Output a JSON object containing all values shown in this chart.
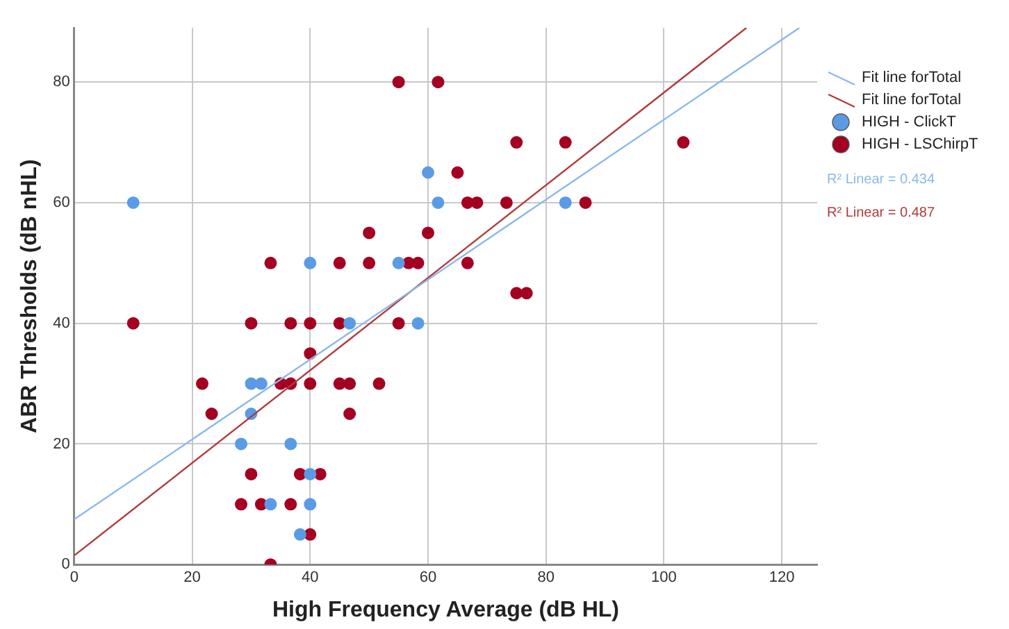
{
  "chart_data": {
    "type": "scatter",
    "xlabel": "High Frequency Average (dB HL)",
    "ylabel": "ABR Thresholds (dB nHL)",
    "xlim": [
      0,
      126
    ],
    "ylim": [
      0,
      89
    ],
    "xticks": [
      0,
      20,
      40,
      60,
      80,
      100,
      120
    ],
    "yticks": [
      0,
      20,
      40,
      60,
      80
    ],
    "grid": true,
    "legend": "right",
    "marker": "circle",
    "series": [
      {
        "name": "Fit line forTotal",
        "type": "line",
        "marker": "none",
        "color": "#8ab8ec",
        "x": [
          0,
          123
        ],
        "values": [
          7.5,
          89
        ]
      },
      {
        "name": "Fit line forTotal",
        "type": "line",
        "marker": "none",
        "color": "#b23a3a",
        "x": [
          0,
          114
        ],
        "values": [
          1.5,
          89
        ]
      },
      {
        "name": "HIGH - ClickT",
        "color": "#5b9be6",
        "x": [
          10,
          40,
          30,
          31.7,
          30,
          28.3,
          36.7,
          40,
          33.3,
          40,
          38.3,
          60,
          61.7,
          83.3,
          55,
          46.7,
          58.3
        ],
        "values": [
          60,
          50,
          30,
          30,
          25,
          20,
          20,
          15,
          10,
          10,
          5,
          65,
          60,
          60,
          50,
          40,
          40
        ]
      },
      {
        "name": "HIGH - LSChirpT",
        "color": "#a50021",
        "x": [
          10,
          33.3,
          45,
          30,
          36.7,
          40,
          45,
          40,
          21.7,
          35,
          36.7,
          40,
          45,
          46.7,
          51.7,
          23.3,
          46.7,
          30,
          38.3,
          41.7,
          28.3,
          31.7,
          36.7,
          40,
          33.3,
          55,
          61.7,
          75,
          83.3,
          103.3,
          65,
          66.7,
          68.3,
          73.3,
          86.7,
          50,
          60,
          50,
          56.7,
          58.3,
          66.7,
          75,
          76.7,
          55
        ],
        "values": [
          40,
          50,
          50,
          40,
          40,
          40,
          40,
          35,
          30,
          30,
          30,
          30,
          30,
          30,
          30,
          25,
          25,
          15,
          15,
          15,
          10,
          10,
          10,
          5,
          0,
          80,
          80,
          70,
          70,
          70,
          65,
          60,
          60,
          60,
          60,
          55,
          55,
          50,
          50,
          50,
          50,
          45,
          45,
          40
        ]
      }
    ],
    "annotations": [
      "R² Linear = 0.434",
      "R² Linear = 0.487"
    ]
  }
}
